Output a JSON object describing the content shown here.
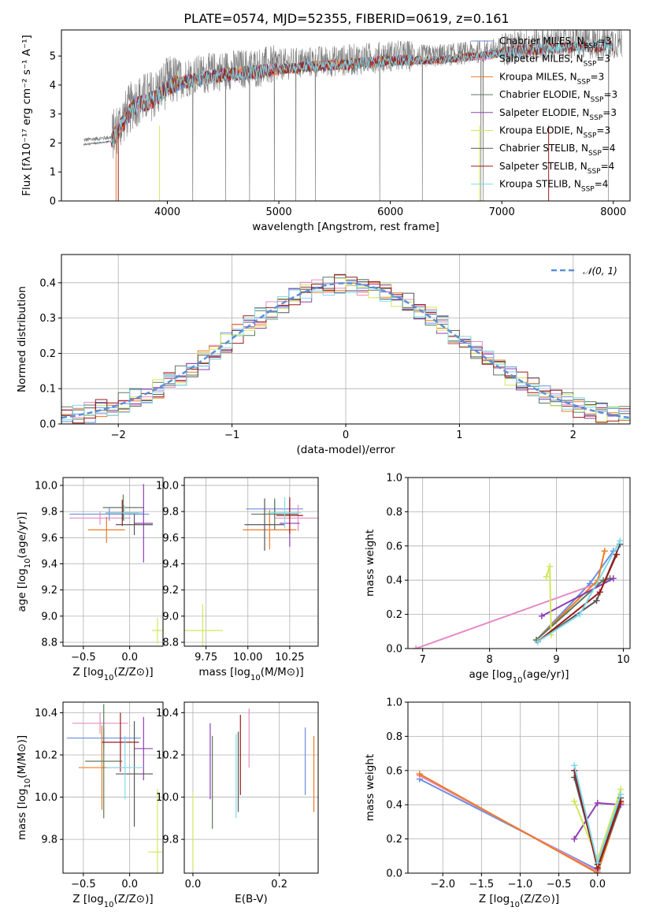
{
  "figure_title": "PLATE=0574, MJD=52355, FIBERID=0619, z=0.161",
  "colors": {
    "Chabrier MILES": "#6b8fe0",
    "Salpeter MILES": "#e68bc4",
    "Kroupa MILES": "#ee7a22",
    "Chabrier ELODIE": "#5c7a5c",
    "Salpeter ELODIE": "#8e3db6",
    "Kroupa ELODIE": "#cfe85a",
    "Chabrier STELIB": "#555555",
    "Salpeter STELIB": "#9b1a1a",
    "Kroupa STELIB": "#7fd9e8",
    "data": "#808080",
    "normal": "#5b8fd6"
  },
  "chart_data": [
    {
      "id": "spectrum",
      "type": "line",
      "title": "PLATE=0574, MJD=52355, FIBERID=0619, z=0.161",
      "xlabel": "wavelength [Angstrom, rest frame]",
      "ylabel": "Flux [fλ10⁻¹⁷ erg cm⁻² s⁻¹ A⁻¹]",
      "xlim": [
        3050,
        8150
      ],
      "ylim": [
        0,
        5.9
      ],
      "xticks": [
        4000,
        5000,
        6000,
        7000,
        8000
      ],
      "yticks": [
        0,
        1,
        2,
        3,
        4,
        5
      ],
      "legend": "upper right",
      "legend_entries": [
        {
          "name": "Chabrier MILES",
          "n": "3"
        },
        {
          "name": "Salpeter MILES",
          "n": "3"
        },
        {
          "name": "Kroupa MILES",
          "n": "3"
        },
        {
          "name": "Chabrier ELODIE",
          "n": "3"
        },
        {
          "name": "Salpeter ELODIE",
          "n": "3"
        },
        {
          "name": "Kroupa ELODIE",
          "n": "3"
        },
        {
          "name": "Chabrier STELIB",
          "n": "4"
        },
        {
          "name": "Salpeter STELIB",
          "n": "4"
        },
        {
          "name": "Kroupa STELIB",
          "n": "4"
        }
      ],
      "continuum": {
        "wavelength": [
          3250,
          3500,
          3700,
          3900,
          4000,
          4200,
          4500,
          4800,
          5000,
          5300,
          5600,
          6000,
          6400,
          6800,
          7200,
          7600,
          8100
        ],
        "flux": [
          2.1,
          2.2,
          3.4,
          3.7,
          4.1,
          4.3,
          4.5,
          4.6,
          4.7,
          4.8,
          4.85,
          5.0,
          5.0,
          5.15,
          5.35,
          5.45,
          5.5
        ]
      }
    },
    {
      "id": "residuals",
      "type": "line",
      "xlabel": "(data-model)/error",
      "ylabel": "Normed distribution",
      "xlim": [
        -2.5,
        2.5
      ],
      "ylim": [
        0,
        0.48
      ],
      "xticks": [
        -2,
        -1,
        0,
        1,
        2
      ],
      "yticks": [
        0.0,
        0.1,
        0.2,
        0.3,
        0.4
      ],
      "grid": true,
      "legend": "upper right",
      "normal_label": "𝒩(0, 1)"
    },
    {
      "id": "age_vs_Z",
      "type": "errorbar",
      "xlabel": "Z [log10(Z/Z⊙)]",
      "ylabel": "age  [log10(age/yr)]",
      "xlim": [
        -0.72,
        0.36
      ],
      "ylim": [
        8.77,
        10.06
      ],
      "xticks": [
        -0.5,
        0.0
      ],
      "yticks": [
        8.8,
        9.0,
        9.2,
        9.4,
        9.6,
        9.8,
        10.0
      ],
      "grid": true,
      "points": [
        {
          "series": "Chabrier MILES",
          "x": -0.22,
          "xerr": 0.43,
          "y": 9.78,
          "yerr": 0.05
        },
        {
          "series": "Salpeter MILES",
          "x": -0.32,
          "xerr": 0.33,
          "y": 9.75,
          "yerr": 0.05
        },
        {
          "series": "Kroupa MILES",
          "x": -0.25,
          "xerr": 0.2,
          "y": 9.66,
          "yerr": 0.1
        },
        {
          "series": "Chabrier ELODIE",
          "x": -0.07,
          "xerr": 0.22,
          "y": 9.83,
          "yerr": 0.1
        },
        {
          "series": "Salpeter ELODIE",
          "x": 0.15,
          "xerr": 0.1,
          "y": 9.71,
          "yerr": 0.3
        },
        {
          "series": "Kroupa ELODIE",
          "x": 0.3,
          "xerr": 0.06,
          "y": 8.89,
          "yerr": 0.1
        },
        {
          "series": "Chabrier STELIB",
          "x": 0.05,
          "xerr": 0.2,
          "y": 9.7,
          "yerr": 0.08
        },
        {
          "series": "Salpeter STELIB",
          "x": -0.08,
          "xerr": 0.18,
          "y": 9.79,
          "yerr": 0.1
        },
        {
          "series": "Kroupa STELIB",
          "x": -0.06,
          "xerr": 0.2,
          "y": 9.79,
          "yerr": 0.06
        }
      ]
    },
    {
      "id": "age_vs_mass",
      "type": "errorbar",
      "xlabel": "mass [log10(M/M⊙)]",
      "ylabel": "",
      "xlim": [
        9.62,
        10.42
      ],
      "ylim": [
        8.77,
        10.06
      ],
      "xticks": [
        9.75,
        10.0,
        10.25
      ],
      "yticks": [
        8.8,
        9.0,
        9.2,
        9.4,
        9.6,
        9.8,
        10.0
      ],
      "grid": true,
      "points": [
        {
          "series": "Chabrier MILES",
          "x": 10.16,
          "xerr": 0.17,
          "y": 9.82,
          "yerr": 0.06
        },
        {
          "series": "Salpeter MILES",
          "x": 10.3,
          "xerr": 0.14,
          "y": 9.75,
          "yerr": 0.1
        },
        {
          "series": "Kroupa MILES",
          "x": 10.13,
          "xerr": 0.16,
          "y": 9.66,
          "yerr": 0.15
        },
        {
          "series": "Chabrier ELODIE",
          "x": 10.16,
          "xerr": 0.14,
          "y": 9.78,
          "yerr": 0.12
        },
        {
          "series": "Salpeter ELODIE",
          "x": 10.25,
          "xerr": 0.06,
          "y": 9.71,
          "yerr": 0.18
        },
        {
          "series": "Kroupa ELODIE",
          "x": 9.73,
          "xerr": 0.12,
          "y": 8.89,
          "yerr": 0.2
        },
        {
          "series": "Chabrier STELIB",
          "x": 10.1,
          "xerr": 0.12,
          "y": 9.7,
          "yerr": 0.2
        },
        {
          "series": "Salpeter STELIB",
          "x": 10.25,
          "xerr": 0.08,
          "y": 9.77,
          "yerr": 0.14
        },
        {
          "series": "Kroupa STELIB",
          "x": 10.22,
          "xerr": 0.1,
          "y": 9.79,
          "yerr": 0.12
        }
      ]
    },
    {
      "id": "weight_vs_age",
      "type": "line",
      "xlabel": "age  [log10(age/yr)]",
      "ylabel": "mass weight",
      "xlim": [
        6.78,
        10.1
      ],
      "ylim": [
        0,
        1.0
      ],
      "xticks": [
        7,
        8,
        9,
        10
      ],
      "yticks": [
        0.0,
        0.2,
        0.4,
        0.6,
        0.8,
        1.0
      ],
      "grid": true,
      "series": [
        {
          "name": "Chabrier MILES",
          "x": [
            8.7,
            9.5,
            9.85
          ],
          "y": [
            0.05,
            0.38,
            0.57
          ]
        },
        {
          "name": "Salpeter MILES",
          "x": [
            6.9,
            9.75
          ],
          "y": [
            0.0,
            0.4
          ]
        },
        {
          "name": "Kroupa MILES",
          "x": [
            8.7,
            9.62,
            9.72
          ],
          "y": [
            0.05,
            0.4,
            0.57
          ]
        },
        {
          "name": "Chabrier ELODIE",
          "x": [
            8.7,
            9.7,
            9.8
          ],
          "y": [
            0.05,
            0.4,
            0.41
          ]
        },
        {
          "name": "Salpeter ELODIE",
          "x": [
            8.78,
            9.85
          ],
          "y": [
            0.19,
            0.41
          ]
        },
        {
          "name": "Kroupa ELODIE",
          "x": [
            8.85,
            8.9,
            8.92
          ],
          "y": [
            0.42,
            0.48,
            0.08
          ]
        },
        {
          "name": "Chabrier STELIB",
          "x": [
            8.72,
            9.6,
            9.95
          ],
          "y": [
            0.04,
            0.28,
            0.61
          ]
        },
        {
          "name": "Salpeter STELIB",
          "x": [
            8.72,
            9.65,
            9.9
          ],
          "y": [
            0.04,
            0.33,
            0.55
          ]
        },
        {
          "name": "Kroupa STELIB",
          "x": [
            8.72,
            9.35,
            9.95
          ],
          "y": [
            0.04,
            0.2,
            0.63
          ]
        }
      ]
    },
    {
      "id": "mass_vs_Z",
      "type": "errorbar",
      "xlabel": "Z [log10(Z/Z⊙)]",
      "ylabel": "mass [log10(M/M⊙)]",
      "xlim": [
        -0.72,
        0.36
      ],
      "ylim": [
        9.64,
        10.45
      ],
      "xticks": [
        -0.5,
        0.0
      ],
      "yticks": [
        9.8,
        10.0,
        10.2,
        10.4
      ],
      "grid": true,
      "points": [
        {
          "series": "Chabrier MILES",
          "x": -0.28,
          "xerr": 0.4,
          "y": 10.28,
          "yerr": 0.05
        },
        {
          "series": "Salpeter MILES",
          "x": -0.32,
          "xerr": 0.3,
          "y": 10.35,
          "yerr": 0.05
        },
        {
          "series": "Kroupa MILES",
          "x": -0.3,
          "xerr": 0.25,
          "y": 10.14,
          "yerr": 0.2
        },
        {
          "series": "Chabrier ELODIE",
          "x": -0.28,
          "xerr": 0.2,
          "y": 10.17,
          "yerr": 0.27
        },
        {
          "series": "Salpeter ELODIE",
          "x": 0.15,
          "xerr": 0.1,
          "y": 10.23,
          "yerr": 0.15
        },
        {
          "series": "Kroupa ELODIE",
          "x": 0.3,
          "xerr": 0.1,
          "y": 9.74,
          "yerr": 0.3
        },
        {
          "series": "Chabrier STELIB",
          "x": 0.05,
          "xerr": 0.2,
          "y": 10.11,
          "yerr": 0.25
        },
        {
          "series": "Salpeter STELIB",
          "x": -0.1,
          "xerr": 0.2,
          "y": 10.26,
          "yerr": 0.14
        },
        {
          "series": "Kroupa STELIB",
          "x": -0.05,
          "xerr": 0.2,
          "y": 10.14,
          "yerr": 0.15
        }
      ]
    },
    {
      "id": "mass_vs_ebv",
      "type": "errorbar",
      "xlabel": "E(B-V)",
      "ylabel": "",
      "xlim": [
        -0.02,
        0.29
      ],
      "ylim": [
        9.64,
        10.45
      ],
      "xticks": [
        0.0,
        0.2
      ],
      "yticks": [
        9.8,
        10.0,
        10.2,
        10.4
      ],
      "grid": true,
      "points": [
        {
          "series": "Chabrier MILES",
          "x": 0.26,
          "y": 10.17,
          "yerr": 0.16
        },
        {
          "series": "Salpeter MILES",
          "x": 0.13,
          "y": 10.28,
          "yerr": 0.14
        },
        {
          "series": "Kroupa MILES",
          "x": 0.28,
          "y": 10.11,
          "yerr": 0.18
        },
        {
          "series": "Chabrier ELODIE",
          "x": 0.045,
          "y": 10.07,
          "yerr": 0.22
        },
        {
          "series": "Salpeter ELODIE",
          "x": 0.04,
          "y": 10.17,
          "yerr": 0.18
        },
        {
          "series": "Kroupa ELODIE",
          "x": 0.0,
          "y": 9.84,
          "yerr": 0.18
        },
        {
          "series": "Chabrier STELIB",
          "x": 0.105,
          "y": 10.12,
          "yerr": 0.19
        },
        {
          "series": "Salpeter STELIB",
          "x": 0.11,
          "y": 10.2,
          "yerr": 0.19
        },
        {
          "series": "Kroupa STELIB",
          "x": 0.1,
          "y": 10.1,
          "yerr": 0.2
        }
      ]
    },
    {
      "id": "weight_vs_Z",
      "type": "line",
      "xlabel": "Z [log10(Z/Z⊙)]",
      "ylabel": "mass weight",
      "xlim": [
        -2.45,
        0.42
      ],
      "ylim": [
        0,
        1.0
      ],
      "xticks": [
        -2.0,
        -1.5,
        -1.0,
        -0.5,
        0.0
      ],
      "yticks": [
        0.0,
        0.2,
        0.4,
        0.6,
        0.8,
        1.0
      ],
      "grid": true,
      "series": [
        {
          "name": "Chabrier MILES",
          "x": [
            -2.3,
            0.0,
            0.3
          ],
          "y": [
            0.55,
            0.02,
            0.4
          ]
        },
        {
          "name": "Salpeter MILES",
          "x": [
            -2.3,
            0.0,
            0.3
          ],
          "y": [
            0.57,
            0.01,
            0.4
          ]
        },
        {
          "name": "Kroupa MILES",
          "x": [
            -2.3,
            0.0,
            0.3
          ],
          "y": [
            0.58,
            0.0,
            0.41
          ]
        },
        {
          "name": "Chabrier ELODIE",
          "x": [
            -0.3,
            0.0,
            0.3
          ],
          "y": [
            0.6,
            0.03,
            0.4
          ]
        },
        {
          "name": "Salpeter ELODIE",
          "x": [
            -0.3,
            0.0,
            0.3
          ],
          "y": [
            0.2,
            0.41,
            0.4
          ]
        },
        {
          "name": "Kroupa ELODIE",
          "x": [
            -0.3,
            0.0,
            0.3
          ],
          "y": [
            0.42,
            0.08,
            0.49
          ]
        },
        {
          "name": "Chabrier STELIB",
          "x": [
            -0.3,
            0.0,
            0.3
          ],
          "y": [
            0.56,
            0.05,
            0.44
          ]
        },
        {
          "name": "Salpeter STELIB",
          "x": [
            -0.3,
            0.0,
            0.3
          ],
          "y": [
            0.6,
            0.03,
            0.42
          ]
        },
        {
          "name": "Kroupa STELIB",
          "x": [
            -0.3,
            0.0,
            0.3
          ],
          "y": [
            0.63,
            0.06,
            0.46
          ]
        }
      ]
    }
  ]
}
